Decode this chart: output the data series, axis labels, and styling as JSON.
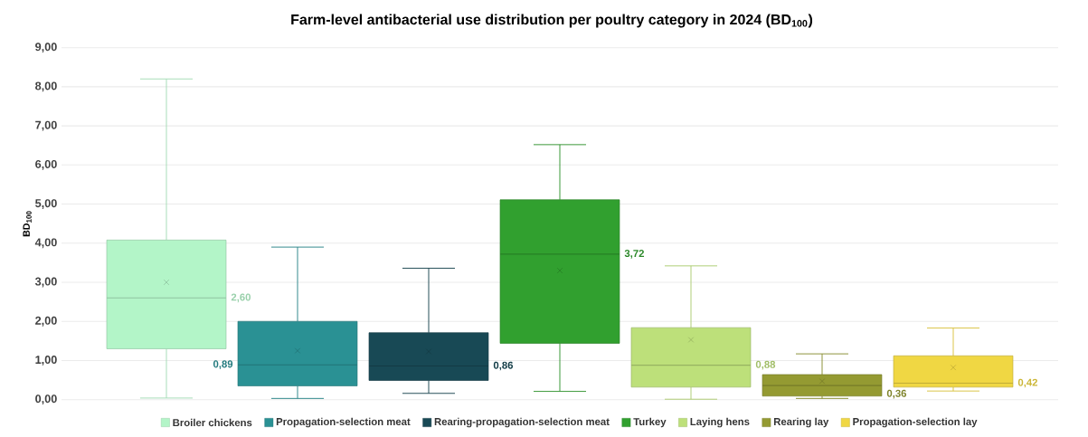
{
  "chart_data": {
    "type": "box",
    "title": "Farm-level antibacterial use distribution per poultry category in 2024 (BD$_{100}$)",
    "ylabel": "BD$_{100}$",
    "categories": [
      null
    ],
    "series": [
      {
        "name": "Broiler chickens",
        "color": "#b3f5c8",
        "boxes": [
          {
            "low": 0.04,
            "q1": 1.3,
            "median": 2.6,
            "q3": 4.08,
            "high": 8.2,
            "mean": 3.0
          }
        ],
        "value_labels": [
          "2,60"
        ]
      },
      {
        "name": "Propagation-selection meat",
        "color": "#2a9194",
        "boxes": [
          {
            "low": 0.03,
            "q1": 0.35,
            "median": 0.89,
            "q3": 2.0,
            "high": 3.9,
            "mean": 1.25
          }
        ],
        "value_labels": [
          "0,89"
        ]
      },
      {
        "name": "Rearing-propagation-selection meat",
        "color": "#184955",
        "boxes": [
          {
            "low": 0.16,
            "q1": 0.49,
            "median": 0.86,
            "q3": 1.71,
            "high": 3.36,
            "mean": 1.23
          }
        ],
        "value_labels": [
          "0,86"
        ]
      },
      {
        "name": "Turkey",
        "color": "#31a02f",
        "boxes": [
          {
            "low": 0.21,
            "q1": 1.44,
            "median": 3.72,
            "q3": 5.11,
            "high": 6.52,
            "mean": 3.3
          }
        ],
        "value_labels": [
          "3,72"
        ]
      },
      {
        "name": "Laying hens",
        "color": "#bde07a",
        "boxes": [
          {
            "low": 0.01,
            "q1": 0.32,
            "median": 0.88,
            "q3": 1.84,
            "high": 3.42,
            "mean": 1.53
          }
        ],
        "value_labels": [
          "0,88"
        ]
      },
      {
        "name": "Rearing lay",
        "color": "#949a32",
        "boxes": [
          {
            "low": 0.03,
            "q1": 0.09,
            "median": 0.36,
            "q3": 0.64,
            "high": 1.17,
            "mean": 0.47
          }
        ],
        "value_labels": [
          "0,36"
        ]
      },
      {
        "name": "Propagation-selection lay",
        "color": "#f0d743",
        "boxes": [
          {
            "low": 0.22,
            "q1": 0.32,
            "median": 0.42,
            "q3": 1.12,
            "high": 1.83,
            "mean": 0.82
          }
        ],
        "value_labels": [
          "0,42"
        ]
      }
    ],
    "ylim": [
      0,
      9
    ],
    "yticks": [
      {
        "value": 0,
        "label": "0,00"
      },
      {
        "value": 1,
        "label": "1,00"
      },
      {
        "value": 2,
        "label": "2,00"
      },
      {
        "value": 3,
        "label": "3,00"
      },
      {
        "value": 4,
        "label": "4,00"
      },
      {
        "value": 5,
        "label": "5,00"
      },
      {
        "value": 6,
        "label": "6,00"
      },
      {
        "value": 7,
        "label": "7,00"
      },
      {
        "value": 8,
        "label": "8,00"
      },
      {
        "value": 9,
        "label": "9,00"
      }
    ],
    "grid": "y",
    "legend": "bottom",
    "marker": "cross"
  }
}
